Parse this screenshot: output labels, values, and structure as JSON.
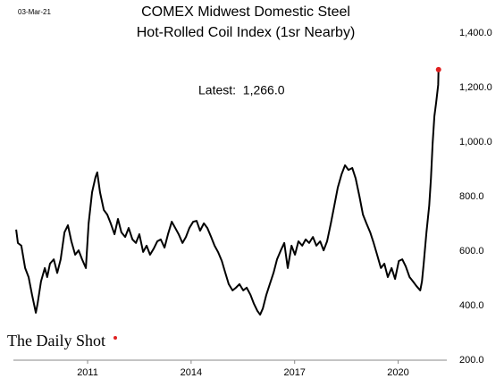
{
  "date_stamp": "03-Mar-21",
  "logo": "The Daily Shot",
  "chart_data": {
    "type": "line",
    "title": [
      "COMEX Midwest Domestic Steel",
      "Hot-Rolled Coil Index (1sr Nearby)"
    ],
    "annotation": "Latest:  1,266.0",
    "x": [
      2008.93,
      2008.98,
      2009.08,
      2009.19,
      2009.29,
      2009.39,
      2009.5,
      2009.55,
      2009.65,
      2009.76,
      2009.83,
      2009.91,
      2010.02,
      2010.12,
      2010.22,
      2010.33,
      2010.43,
      2010.53,
      2010.64,
      2010.74,
      2010.84,
      2010.95,
      2011.03,
      2011.13,
      2011.23,
      2011.28,
      2011.36,
      2011.47,
      2011.57,
      2011.67,
      2011.78,
      2011.88,
      2011.98,
      2012.09,
      2012.19,
      2012.3,
      2012.4,
      2012.5,
      2012.61,
      2012.71,
      2012.81,
      2012.92,
      2013.02,
      2013.12,
      2013.23,
      2013.33,
      2013.44,
      2013.54,
      2013.64,
      2013.75,
      2013.85,
      2013.95,
      2014.06,
      2014.16,
      2014.26,
      2014.37,
      2014.47,
      2014.58,
      2014.68,
      2014.78,
      2014.89,
      2014.99,
      2015.09,
      2015.2,
      2015.3,
      2015.4,
      2015.51,
      2015.61,
      2015.72,
      2015.82,
      2015.92,
      2016.0,
      2016.08,
      2016.18,
      2016.28,
      2016.39,
      2016.49,
      2016.6,
      2016.7,
      2016.8,
      2016.91,
      2017.01,
      2017.11,
      2017.22,
      2017.32,
      2017.42,
      2017.53,
      2017.63,
      2017.74,
      2017.84,
      2017.94,
      2018.05,
      2018.15,
      2018.25,
      2018.36,
      2018.46,
      2018.56,
      2018.67,
      2018.77,
      2018.88,
      2018.98,
      2019.08,
      2019.19,
      2019.29,
      2019.39,
      2019.5,
      2019.6,
      2019.7,
      2019.81,
      2019.91,
      2020.02,
      2020.12,
      2020.22,
      2020.33,
      2020.43,
      2020.53,
      2020.64,
      2020.69,
      2020.74,
      2020.82,
      2020.9,
      2020.95,
      2021.0,
      2021.05,
      2021.1,
      2021.16,
      2021.17
    ],
    "series": [
      {
        "name": "Hot-Rolled Coil Index",
        "color": "#000000",
        "values": [
          679,
          630,
          620,
          538,
          505,
          440,
          374,
          407,
          489,
          538,
          505,
          554,
          570,
          520,
          570,
          669,
          695,
          636,
          587,
          603,
          570,
          538,
          702,
          816,
          872,
          889,
          816,
          751,
          734,
          702,
          662,
          718,
          669,
          652,
          685,
          643,
          630,
          662,
          597,
          620,
          587,
          610,
          636,
          643,
          613,
          662,
          708,
          685,
          662,
          630,
          652,
          685,
          708,
          711,
          675,
          702,
          685,
          652,
          620,
          597,
          564,
          521,
          479,
          456,
          466,
          479,
          456,
          466,
          440,
          407,
          381,
          367,
          390,
          440,
          479,
          521,
          570,
          603,
          630,
          538,
          620,
          587,
          636,
          620,
          643,
          630,
          652,
          620,
          636,
          603,
          636,
          702,
          767,
          833,
          882,
          915,
          898,
          905,
          866,
          800,
          734,
          702,
          669,
          630,
          587,
          538,
          554,
          505,
          538,
          498,
          564,
          570,
          544,
          505,
          489,
          472,
          456,
          489,
          554,
          669,
          767,
          866,
          997,
          1095,
          1144,
          1210,
          1266
        ]
      }
    ],
    "highlight_last": true,
    "highlight_color": "#e02020",
    "xlim": [
      2008.85,
      2021.41
    ],
    "xticks": [
      2011,
      2014,
      2017,
      2020
    ],
    "ylim": [
      200,
      1400
    ],
    "yticks": [
      {
        "value": 200,
        "label": "200.0"
      },
      {
        "value": 400,
        "label": "400.0"
      },
      {
        "value": 600,
        "label": "600.0"
      },
      {
        "value": 800,
        "label": "800.0"
      },
      {
        "value": 1000,
        "label": "1,000.0"
      },
      {
        "value": 1200,
        "label": "1,200.0"
      },
      {
        "value": 1400,
        "label": "1,400.0"
      }
    ],
    "y_axis_side": "right",
    "grid": false
  }
}
